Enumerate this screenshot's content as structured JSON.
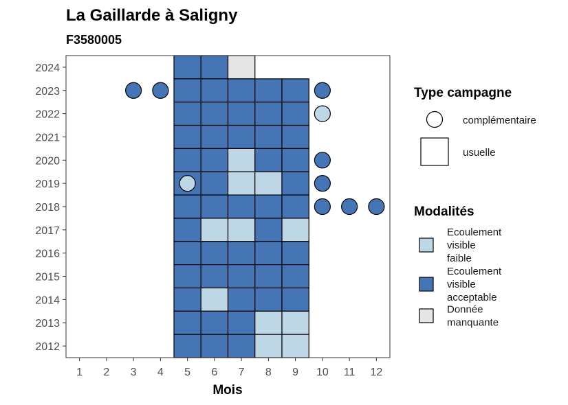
{
  "chart_data": {
    "type": "heatmap",
    "title": "La Gaillarde à Saligny",
    "subtitle": "F3580005",
    "xlabel": "Mois",
    "ylabel": "",
    "x_ticks": [
      "1",
      "2",
      "3",
      "4",
      "5",
      "6",
      "7",
      "8",
      "9",
      "10",
      "11",
      "12"
    ],
    "y_ticks": [
      "2012",
      "2013",
      "2014",
      "2015",
      "2016",
      "2017",
      "2018",
      "2019",
      "2020",
      "2021",
      "2022",
      "2023",
      "2024"
    ],
    "xlim": [
      0.5,
      12.5
    ],
    "ylim": [
      2011.5,
      2024.5
    ],
    "grid": false,
    "colors": {
      "Ecoulement visible faible": "#bdd7e7",
      "Ecoulement visible acceptable": "#4575b4",
      "Donnée manquante": "#e5e5e5"
    },
    "legend": {
      "position": "right",
      "shape_title": "Type campagne",
      "shape_entries": [
        {
          "label": "complémentaire",
          "shape": "circle"
        },
        {
          "label": "usuelle",
          "shape": "square"
        }
      ],
      "fill_title": "Modalités",
      "fill_entries": [
        {
          "label_lines": [
            "Ecoulement",
            "visible",
            "faible"
          ],
          "modalite": "Ecoulement visible faible"
        },
        {
          "label_lines": [
            "Ecoulement",
            "visible",
            "acceptable"
          ],
          "modalite": "Ecoulement visible acceptable"
        },
        {
          "label_lines": [
            "Donnée",
            "manquante"
          ],
          "modalite": "Donnée manquante"
        }
      ]
    },
    "usuelle": [
      {
        "year": 2024,
        "months": {
          "5": "A",
          "6": "A",
          "7": "M"
        }
      },
      {
        "year": 2023,
        "months": {
          "5": "A",
          "6": "A",
          "7": "A",
          "8": "A",
          "9": "A"
        }
      },
      {
        "year": 2022,
        "months": {
          "5": "A",
          "6": "A",
          "7": "A",
          "8": "A",
          "9": "A"
        }
      },
      {
        "year": 2021,
        "months": {
          "5": "A",
          "6": "A",
          "7": "A",
          "8": "A",
          "9": "A"
        }
      },
      {
        "year": 2020,
        "months": {
          "5": "A",
          "6": "A",
          "7": "F",
          "8": "A",
          "9": "A"
        }
      },
      {
        "year": 2019,
        "months": {
          "5": "A",
          "6": "A",
          "7": "F",
          "8": "F",
          "9": "A"
        }
      },
      {
        "year": 2018,
        "months": {
          "5": "A",
          "6": "A",
          "7": "A",
          "8": "A",
          "9": "A"
        }
      },
      {
        "year": 2017,
        "months": {
          "5": "A",
          "6": "F",
          "7": "F",
          "8": "A",
          "9": "F"
        }
      },
      {
        "year": 2016,
        "months": {
          "5": "A",
          "6": "A",
          "7": "A",
          "8": "A",
          "9": "A"
        }
      },
      {
        "year": 2015,
        "months": {
          "5": "A",
          "6": "A",
          "7": "A",
          "8": "A",
          "9": "A"
        }
      },
      {
        "year": 2014,
        "months": {
          "5": "A",
          "6": "F",
          "7": "A",
          "8": "A",
          "9": "A"
        }
      },
      {
        "year": 2013,
        "months": {
          "5": "A",
          "6": "A",
          "7": "A",
          "8": "F",
          "9": "F"
        }
      },
      {
        "year": 2012,
        "months": {
          "5": "A",
          "6": "A",
          "7": "A",
          "8": "F",
          "9": "F"
        }
      }
    ],
    "modalite_codes": {
      "A": "Ecoulement visible acceptable",
      "F": "Ecoulement visible faible",
      "M": "Donnée manquante"
    },
    "complementaire": [
      {
        "year": 2023,
        "month": 3,
        "code": "A"
      },
      {
        "year": 2023,
        "month": 4,
        "code": "A"
      },
      {
        "year": 2023,
        "month": 10,
        "code": "A"
      },
      {
        "year": 2022,
        "month": 10,
        "code": "F"
      },
      {
        "year": 2020,
        "month": 10,
        "code": "A"
      },
      {
        "year": 2019,
        "month": 5,
        "code": "F"
      },
      {
        "year": 2019,
        "month": 10,
        "code": "A"
      },
      {
        "year": 2018,
        "month": 10,
        "code": "A"
      },
      {
        "year": 2018,
        "month": 11,
        "code": "A"
      },
      {
        "year": 2018,
        "month": 12,
        "code": "A"
      }
    ]
  }
}
